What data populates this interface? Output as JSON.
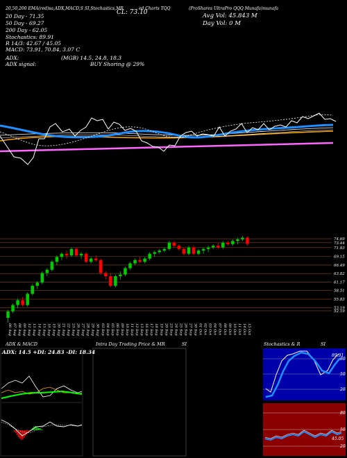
{
  "header": {
    "top_line": "(ProShares UltraPro QQQ Munafa)munafa",
    "top_left_tags": "",
    "cl_label": "CL: 73.10",
    "top_ema_tags": "20,50,200 EMA(red)sa,ADX,MACD,S",
    "top_stoch_tags": "SI,Stochastics,MR",
    "top_chart_tag": "ed Charts TQQ"
  },
  "indicators": {
    "sma20": "20 Day - 71.35",
    "sma50": "50 Day - 69.27",
    "sma200": "200 Day - 62.05",
    "stochastics": "Stochastics: 89.91",
    "stoch_r": "R 14/3: 42.67 / 45.05",
    "macd": "MACD: 73.91, 70.84, 3.07 C",
    "avg_vol": "Avg Vol: 45.843 M",
    "day_vol": "Day Vol: 0  M",
    "adx_label": "ADX:",
    "adx_values": "(MGB) 14.5, 24.8, 18.3",
    "adx_signal_label": "ADX  signal:",
    "adx_signal_value": "BUY Shoring @ 29%"
  },
  "bottom": {
    "adx_macd_title": "ADX  & MACD",
    "intraday_title": "Intra Day Trading Price  & MR",
    "intraday_si": "SI",
    "stoch_title": "Stochastics & R",
    "stoch_si": "SI",
    "adx_readout": "ADX: 14.5 +DI: 24.83 -DI: 18.34",
    "stoch_label_80": "80",
    "stoch_label_50": "50",
    "stoch_label_20": "20",
    "rsi_label_80": "80",
    "rsi_label_50": "50",
    "rsi_label_20": "20",
    "stoch_series_label": "89.91",
    "rsi_series_label": "45.05"
  },
  "colors": {
    "up": "#00cc00",
    "down": "#ff0000",
    "sma20": "#ffffff",
    "sma50": "#1e90ff",
    "sma100": "#ffa500",
    "sma200": "#ff66ff",
    "bg": "#000000",
    "grid": "#8b4513"
  },
  "chart_data": {
    "type": "candlestick",
    "price_axis": [
      "74.69",
      "73.44",
      "71.93",
      "69.15",
      "66.49",
      "63.82",
      "61.17",
      "58.51",
      "55.83",
      "53.19",
      "52.19"
    ],
    "dates": [
      "06 Aug",
      "07 Aug",
      "08 Aug",
      "09 Aug",
      "12 Aug",
      "13 Aug",
      "14 Aug",
      "15 Aug",
      "16 Aug",
      "19 Aug",
      "20 Aug",
      "21 Aug",
      "22 Aug",
      "23 Aug",
      "26 Aug",
      "27 Aug",
      "28 Aug",
      "29 Aug",
      "30 Aug",
      "03 Sep",
      "04 Sep",
      "05 Sep",
      "06 Sep",
      "09 Sep",
      "10 Sep",
      "11 Sep",
      "12 Sep",
      "13 Sep",
      "16 Sep",
      "17 Sep",
      "18 Sep",
      "19 Sep",
      "20 Sep",
      "23 Sep",
      "24 Sep",
      "25 Sep",
      "26 Sep",
      "27 Sep",
      "30 Sep",
      "01 Oct",
      "02 Oct",
      "03 Oct",
      "04 Oct",
      "07 Oct",
      "08 Oct",
      "09 Oct",
      "10 Oct",
      "11 Oct",
      "14 Oct",
      "15 Oct"
    ],
    "ohlc": [
      [
        50.0,
        52.5,
        48.5,
        52.0
      ],
      [
        52.0,
        54.5,
        51.5,
        54.0
      ],
      [
        54.0,
        56.0,
        53.0,
        55.5
      ],
      [
        55.5,
        56.5,
        53.5,
        54.0
      ],
      [
        54.0,
        58.0,
        53.5,
        57.5
      ],
      [
        57.5,
        60.5,
        57.0,
        60.0
      ],
      [
        60.0,
        61.5,
        59.0,
        61.0
      ],
      [
        61.0,
        64.5,
        60.5,
        64.0
      ],
      [
        64.0,
        65.5,
        63.0,
        65.0
      ],
      [
        65.0,
        68.0,
        64.5,
        67.5
      ],
      [
        67.5,
        69.5,
        66.5,
        69.0
      ],
      [
        69.0,
        70.5,
        68.0,
        70.0
      ],
      [
        70.0,
        71.0,
        68.5,
        69.5
      ],
      [
        69.5,
        72.0,
        69.0,
        71.5
      ],
      [
        71.5,
        72.0,
        69.0,
        69.5
      ],
      [
        69.5,
        70.5,
        68.5,
        70.0
      ],
      [
        70.0,
        70.5,
        67.0,
        67.5
      ],
      [
        67.5,
        69.0,
        67.0,
        68.5
      ],
      [
        68.5,
        69.5,
        67.5,
        68.0
      ],
      [
        68.0,
        68.5,
        63.5,
        64.0
      ],
      [
        64.0,
        64.5,
        62.0,
        63.0
      ],
      [
        63.0,
        64.0,
        59.5,
        60.0
      ],
      [
        60.0,
        63.5,
        59.5,
        63.0
      ],
      [
        63.0,
        64.5,
        62.0,
        63.5
      ],
      [
        63.5,
        66.0,
        63.0,
        65.5
      ],
      [
        65.5,
        67.5,
        65.0,
        67.0
      ],
      [
        67.0,
        68.5,
        66.5,
        68.0
      ],
      [
        68.0,
        69.0,
        67.0,
        67.5
      ],
      [
        67.5,
        69.0,
        67.0,
        68.5
      ],
      [
        68.5,
        70.5,
        68.0,
        70.0
      ],
      [
        70.0,
        71.0,
        69.0,
        70.5
      ],
      [
        70.5,
        71.5,
        70.0,
        71.0
      ],
      [
        71.0,
        72.0,
        70.5,
        71.5
      ],
      [
        71.5,
        74.0,
        71.0,
        73.5
      ],
      [
        73.5,
        74.0,
        72.0,
        72.5
      ],
      [
        72.5,
        73.0,
        71.0,
        71.5
      ],
      [
        71.5,
        72.0,
        69.5,
        70.0
      ],
      [
        70.0,
        72.5,
        69.5,
        72.0
      ],
      [
        72.0,
        72.5,
        69.5,
        70.0
      ],
      [
        70.0,
        71.5,
        69.5,
        71.0
      ],
      [
        71.0,
        72.0,
        70.0,
        71.5
      ],
      [
        71.5,
        72.5,
        70.5,
        72.0
      ],
      [
        72.0,
        73.0,
        71.5,
        72.5
      ],
      [
        72.5,
        73.5,
        71.5,
        72.0
      ],
      [
        72.0,
        74.0,
        71.5,
        73.5
      ],
      [
        73.5,
        74.0,
        72.5,
        73.0
      ],
      [
        73.0,
        74.5,
        72.5,
        74.0
      ],
      [
        74.0,
        75.0,
        73.0,
        74.5
      ],
      [
        74.5,
        75.5,
        74.0,
        75.0
      ],
      [
        75.0,
        75.5,
        72.5,
        73.1
      ]
    ]
  }
}
